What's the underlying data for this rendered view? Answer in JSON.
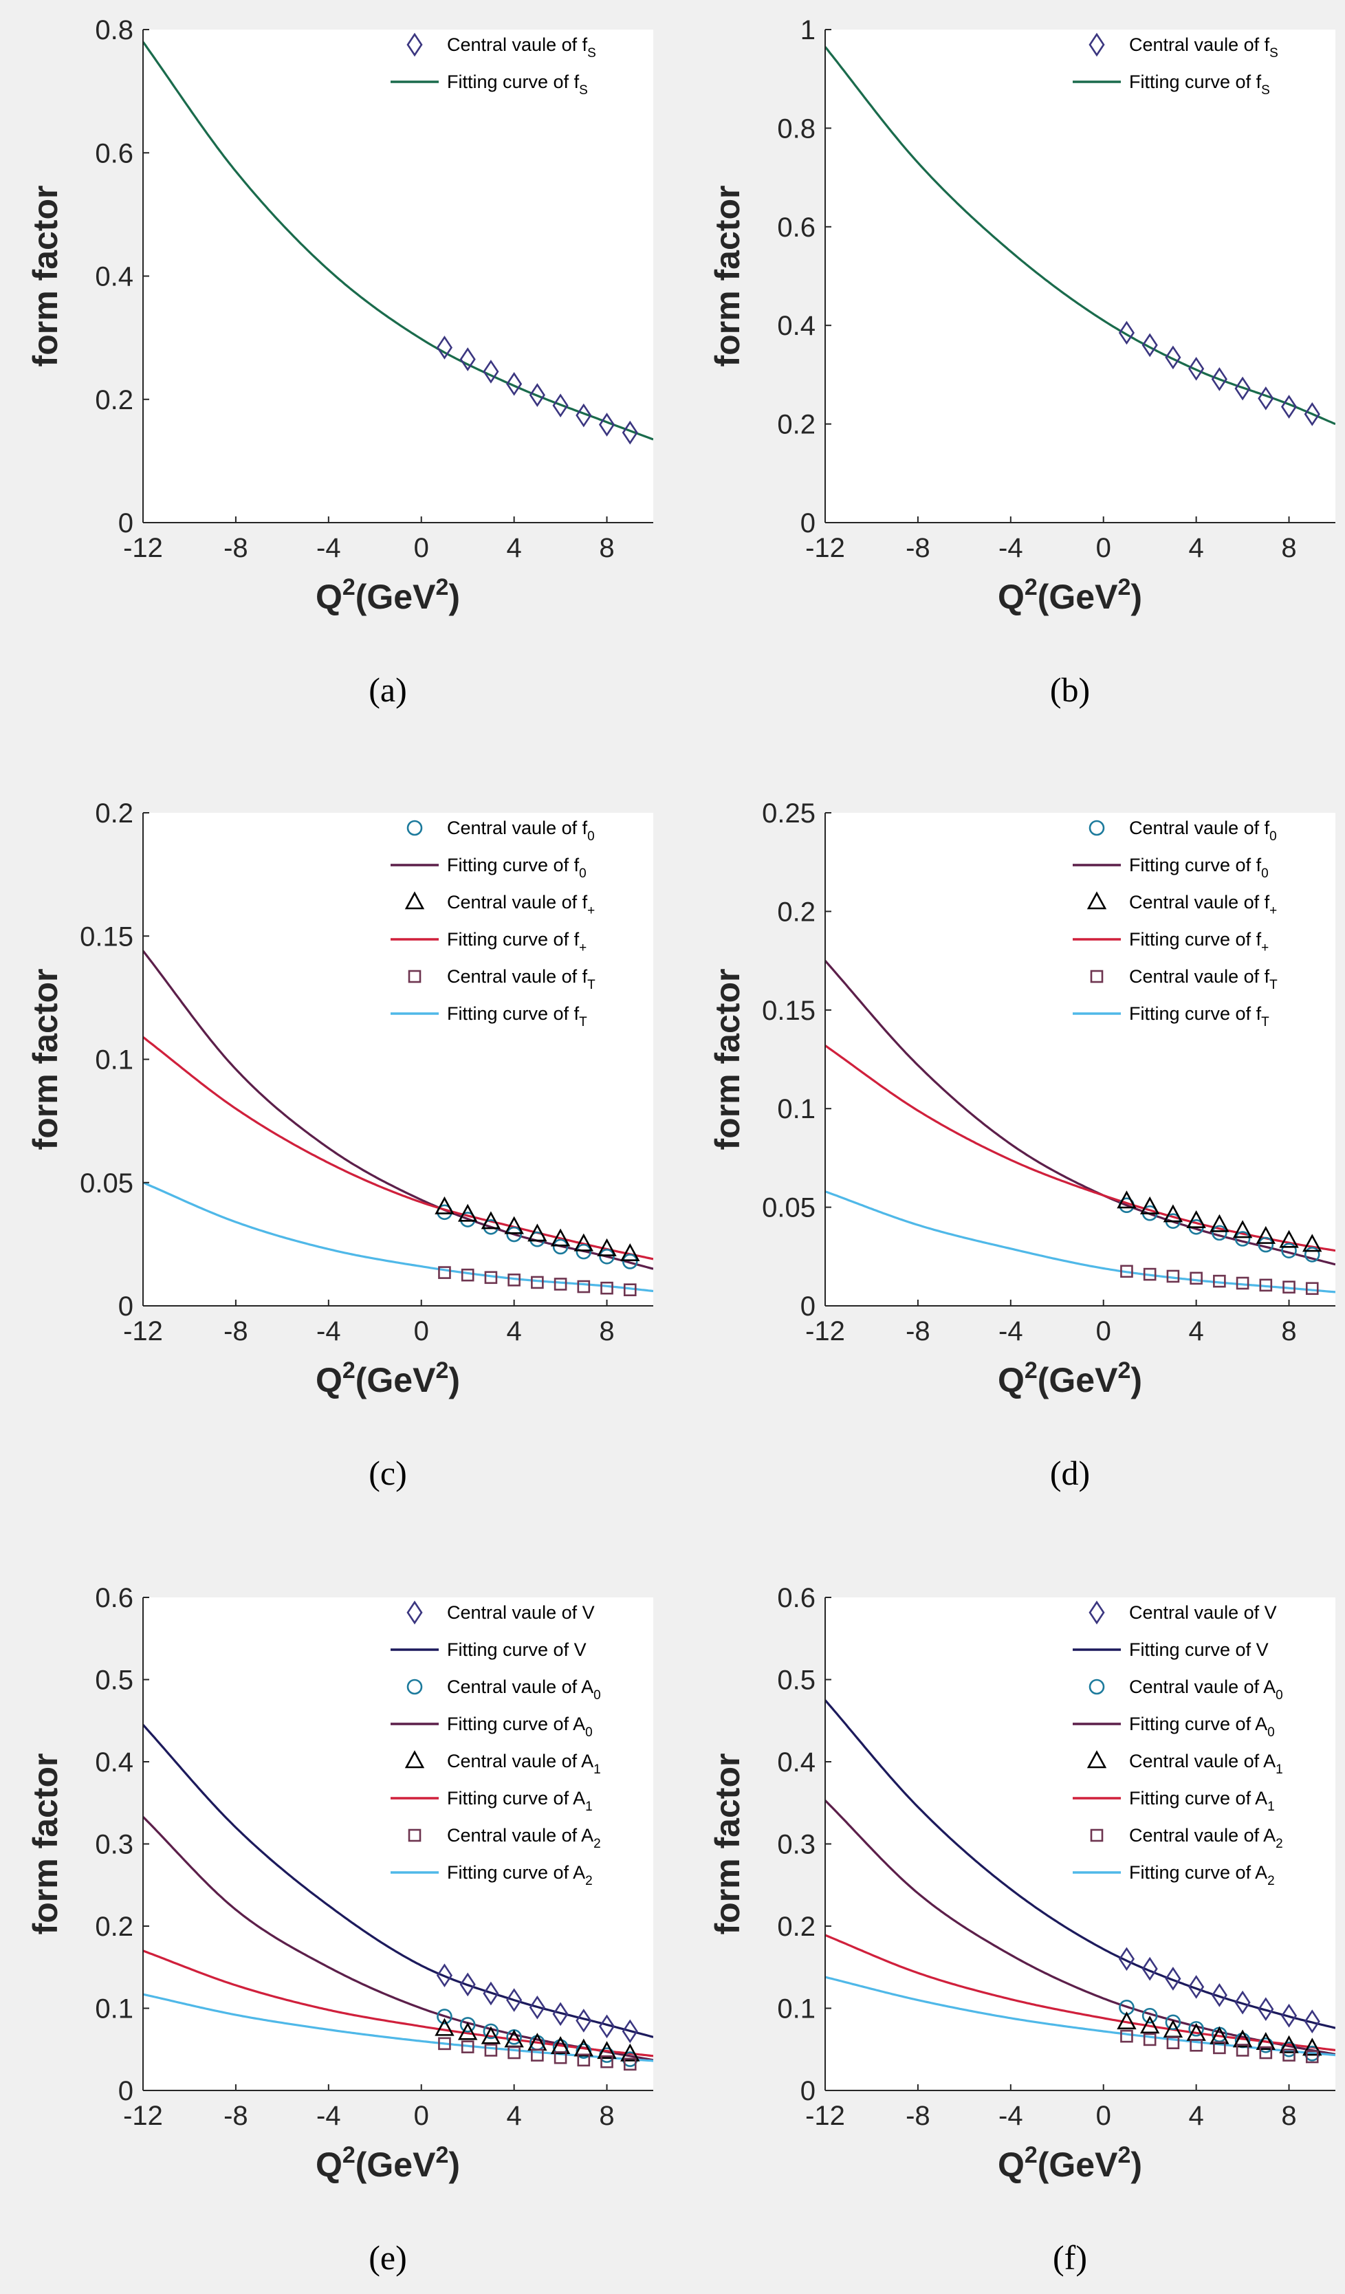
{
  "chart_data": [
    {
      "type": "line",
      "caption": "(a)",
      "xlabel": "Q",
      "xlabel_sup": "2",
      "xlabel_unit": "(GeV",
      "xlabel_unit_sup": "2",
      "xlabel_close": ")",
      "ylabel": "form factor",
      "xlim": [
        -12,
        10
      ],
      "ylim": [
        0,
        0.8
      ],
      "xticks": [
        "-12",
        "-8",
        "-4",
        "0",
        "4",
        "8"
      ],
      "yticks": [
        "0",
        "0.2",
        "0.4",
        "0.6",
        "0.8"
      ],
      "series": [
        {
          "name": "f_S",
          "legend_point": [
            "Central vaule of f",
            "S"
          ],
          "legend_curve": [
            "Fitting curve of f",
            "S"
          ],
          "marker": "diamond",
          "color": "#1a6b4c",
          "marker_color": "#3b3680",
          "x": [
            1,
            2,
            3,
            4,
            5,
            6,
            7,
            8,
            9
          ],
          "y": [
            0.284,
            0.265,
            0.245,
            0.225,
            0.207,
            0.19,
            0.174,
            0.159,
            0.146
          ],
          "curve_x": [
            -12,
            -8,
            -4,
            0,
            4,
            8,
            10
          ],
          "curve_y": [
            0.78,
            0.57,
            0.41,
            0.298,
            0.222,
            0.163,
            0.135
          ]
        }
      ]
    },
    {
      "type": "line",
      "caption": "(b)",
      "xlabel": "Q",
      "xlabel_sup": "2",
      "xlabel_unit": "(GeV",
      "xlabel_unit_sup": "2",
      "xlabel_close": ")",
      "ylabel": "form factor",
      "xlim": [
        -12,
        10
      ],
      "ylim": [
        0,
        1
      ],
      "xticks": [
        "-12",
        "-8",
        "-4",
        "0",
        "4",
        "8"
      ],
      "yticks": [
        "0",
        "0.2",
        "0.4",
        "0.6",
        "0.8",
        "1"
      ],
      "series": [
        {
          "name": "f_S",
          "legend_point": [
            "Central vaule of f",
            "S"
          ],
          "legend_curve": [
            "Fitting curve of f",
            "S"
          ],
          "marker": "diamond",
          "color": "#1a6b4c",
          "marker_color": "#3b3680",
          "x": [
            1,
            2,
            3,
            4,
            5,
            6,
            7,
            8,
            9
          ],
          "y": [
            0.385,
            0.36,
            0.335,
            0.312,
            0.291,
            0.272,
            0.252,
            0.235,
            0.22
          ],
          "curve_x": [
            -12,
            -8,
            -4,
            0,
            4,
            8,
            10
          ],
          "curve_y": [
            0.965,
            0.73,
            0.55,
            0.41,
            0.31,
            0.24,
            0.2
          ]
        }
      ]
    },
    {
      "type": "line",
      "caption": "(c)",
      "xlabel": "Q",
      "xlabel_sup": "2",
      "xlabel_unit": "(GeV",
      "xlabel_unit_sup": "2",
      "xlabel_close": ")",
      "ylabel": "form factor",
      "xlim": [
        -12,
        10
      ],
      "ylim": [
        0,
        0.2
      ],
      "xticks": [
        "-12",
        "-8",
        "-4",
        "0",
        "4",
        "8"
      ],
      "yticks": [
        "0",
        "0.05",
        "0.1",
        "0.15",
        "0.2"
      ],
      "series": [
        {
          "name": "f_0",
          "legend_point": [
            "Central vaule of f",
            "0"
          ],
          "legend_curve": [
            "Fitting curve of f",
            "0"
          ],
          "marker": "circle",
          "color": "#5c1f4a",
          "marker_color": "#1c7a9c",
          "x": [
            1,
            2,
            3,
            4,
            5,
            6,
            7,
            8,
            9
          ],
          "y": [
            0.038,
            0.035,
            0.032,
            0.029,
            0.027,
            0.024,
            0.022,
            0.02,
            0.018
          ],
          "curve_x": [
            -12,
            -8,
            -4,
            0,
            4,
            8,
            10
          ],
          "curve_y": [
            0.144,
            0.096,
            0.064,
            0.043,
            0.029,
            0.02,
            0.015
          ]
        },
        {
          "name": "f_+",
          "legend_point": [
            "Central vaule of f",
            "+"
          ],
          "legend_curve": [
            "Fitting curve of f",
            "+"
          ],
          "marker": "triangle",
          "color": "#d0203c",
          "marker_color": "#000000",
          "x": [
            1,
            2,
            3,
            4,
            5,
            6,
            7,
            8,
            9
          ],
          "y": [
            0.04,
            0.037,
            0.034,
            0.032,
            0.029,
            0.027,
            0.025,
            0.023,
            0.021
          ],
          "curve_x": [
            -12,
            -8,
            -4,
            0,
            4,
            8,
            10
          ],
          "curve_y": [
            0.109,
            0.08,
            0.058,
            0.042,
            0.032,
            0.023,
            0.019
          ]
        },
        {
          "name": "f_T",
          "legend_point": [
            "Central vaule of f",
            "T"
          ],
          "legend_curve": [
            "Fitting curve of f",
            "T"
          ],
          "marker": "square",
          "color": "#4fb8e8",
          "marker_color": "#6e3550",
          "x": [
            1,
            2,
            3,
            4,
            5,
            6,
            7,
            8,
            9
          ],
          "y": [
            0.0135,
            0.0125,
            0.0115,
            0.0105,
            0.0095,
            0.0088,
            0.0078,
            0.0072,
            0.0065
          ],
          "curve_x": [
            -12,
            -8,
            -4,
            0,
            4,
            8,
            10
          ],
          "curve_y": [
            0.05,
            0.034,
            0.023,
            0.016,
            0.011,
            0.008,
            0.006
          ]
        }
      ]
    },
    {
      "type": "line",
      "caption": "(d)",
      "xlabel": "Q",
      "xlabel_sup": "2",
      "xlabel_unit": "(GeV",
      "xlabel_unit_sup": "2",
      "xlabel_close": ")",
      "ylabel": "form factor",
      "xlim": [
        -12,
        10
      ],
      "ylim": [
        0,
        0.25
      ],
      "xticks": [
        "-12",
        "-8",
        "-4",
        "0",
        "4",
        "8"
      ],
      "yticks": [
        "0",
        "0.05",
        "0.1",
        "0.15",
        "0.2",
        "0.25"
      ],
      "series": [
        {
          "name": "f_0",
          "legend_point": [
            "Central vaule of f",
            "0"
          ],
          "legend_curve": [
            "Fitting curve of f",
            "0"
          ],
          "marker": "circle",
          "color": "#5c1f4a",
          "marker_color": "#1c7a9c",
          "x": [
            1,
            2,
            3,
            4,
            5,
            6,
            7,
            8,
            9
          ],
          "y": [
            0.051,
            0.047,
            0.043,
            0.04,
            0.037,
            0.034,
            0.031,
            0.028,
            0.026
          ],
          "curve_x": [
            -12,
            -8,
            -4,
            0,
            4,
            8,
            10
          ],
          "curve_y": [
            0.175,
            0.122,
            0.082,
            0.056,
            0.039,
            0.027,
            0.021
          ]
        },
        {
          "name": "f_+",
          "legend_point": [
            "Central vaule of f",
            "+"
          ],
          "legend_curve": [
            "Fitting curve of f",
            "+"
          ],
          "marker": "triangle",
          "color": "#d0203c",
          "marker_color": "#000000",
          "x": [
            1,
            2,
            3,
            4,
            5,
            6,
            7,
            8,
            9
          ],
          "y": [
            0.053,
            0.05,
            0.046,
            0.043,
            0.041,
            0.038,
            0.035,
            0.033,
            0.031
          ],
          "curve_x": [
            -12,
            -8,
            -4,
            0,
            4,
            8,
            10
          ],
          "curve_y": [
            0.132,
            0.099,
            0.074,
            0.056,
            0.042,
            0.032,
            0.028
          ]
        },
        {
          "name": "f_T",
          "legend_point": [
            "Central vaule of f",
            "T"
          ],
          "legend_curve": [
            "Fitting curve of f",
            "T"
          ],
          "marker": "square",
          "color": "#4fb8e8",
          "marker_color": "#6e3550",
          "x": [
            1,
            2,
            3,
            4,
            5,
            6,
            7,
            8,
            9
          ],
          "y": [
            0.0175,
            0.016,
            0.015,
            0.014,
            0.0125,
            0.0115,
            0.0105,
            0.0095,
            0.0088
          ],
          "curve_x": [
            -12,
            -8,
            -4,
            0,
            4,
            8,
            10
          ],
          "curve_y": [
            0.058,
            0.041,
            0.029,
            0.019,
            0.013,
            0.009,
            0.007
          ]
        }
      ]
    },
    {
      "type": "line",
      "caption": "(e)",
      "xlabel": "Q",
      "xlabel_sup": "2",
      "xlabel_unit": "(GeV",
      "xlabel_unit_sup": "2",
      "xlabel_close": ")",
      "ylabel": "form factor",
      "xlim": [
        -12,
        10
      ],
      "ylim": [
        0,
        0.6
      ],
      "xticks": [
        "-12",
        "-8",
        "-4",
        "0",
        "4",
        "8"
      ],
      "yticks": [
        "0",
        "0.1",
        "0.2",
        "0.3",
        "0.4",
        "0.5",
        "0.6"
      ],
      "series": [
        {
          "name": "V",
          "legend_point": [
            "Central vaule of V",
            ""
          ],
          "legend_curve": [
            "Fitting curve of V",
            ""
          ],
          "marker": "diamond",
          "color": "#1c1a5c",
          "marker_color": "#3b3680",
          "x": [
            1,
            2,
            3,
            4,
            5,
            6,
            7,
            8,
            9
          ],
          "y": [
            0.14,
            0.129,
            0.118,
            0.11,
            0.101,
            0.093,
            0.085,
            0.078,
            0.072
          ],
          "curve_x": [
            -12,
            -8,
            -4,
            0,
            4,
            8,
            10
          ],
          "curve_y": [
            0.445,
            0.32,
            0.225,
            0.152,
            0.11,
            0.08,
            0.065
          ]
        },
        {
          "name": "A_0",
          "legend_point": [
            "Central vaule of A",
            "0"
          ],
          "legend_curve": [
            "Fitting curve of A",
            "0"
          ],
          "marker": "circle",
          "color": "#5c1f4a",
          "marker_color": "#1c7a9c",
          "x": [
            1,
            2,
            3,
            4,
            5,
            6,
            7,
            8,
            9
          ],
          "y": [
            0.09,
            0.08,
            0.072,
            0.065,
            0.058,
            0.053,
            0.048,
            0.043,
            0.038
          ],
          "curve_x": [
            -12,
            -8,
            -4,
            0,
            4,
            8,
            10
          ],
          "curve_y": [
            0.333,
            0.22,
            0.15,
            0.1,
            0.068,
            0.047,
            0.037
          ]
        },
        {
          "name": "A_1",
          "legend_point": [
            "Central vaule of A",
            "1"
          ],
          "legend_curve": [
            "Fitting curve of A",
            "1"
          ],
          "marker": "triangle",
          "color": "#d0203c",
          "marker_color": "#000000",
          "x": [
            1,
            2,
            3,
            4,
            5,
            6,
            7,
            8,
            9
          ],
          "y": [
            0.075,
            0.07,
            0.065,
            0.061,
            0.057,
            0.053,
            0.05,
            0.047,
            0.044
          ],
          "curve_x": [
            -12,
            -8,
            -4,
            0,
            4,
            8,
            10
          ],
          "curve_y": [
            0.17,
            0.128,
            0.098,
            0.078,
            0.062,
            0.048,
            0.042
          ]
        },
        {
          "name": "A_2",
          "legend_point": [
            "Central vaule of A",
            "2"
          ],
          "legend_curve": [
            "Fitting curve of A",
            "2"
          ],
          "marker": "square",
          "color": "#4fb8e8",
          "marker_color": "#6e3550",
          "x": [
            1,
            2,
            3,
            4,
            5,
            6,
            7,
            8,
            9
          ],
          "y": [
            0.057,
            0.053,
            0.049,
            0.046,
            0.043,
            0.04,
            0.037,
            0.035,
            0.032
          ],
          "curve_x": [
            -12,
            -8,
            -4,
            0,
            4,
            8,
            10
          ],
          "curve_y": [
            0.117,
            0.092,
            0.074,
            0.06,
            0.049,
            0.04,
            0.036
          ]
        }
      ]
    },
    {
      "type": "line",
      "caption": "(f)",
      "xlabel": "Q",
      "xlabel_sup": "2",
      "xlabel_unit": "(GeV",
      "xlabel_unit_sup": "2",
      "xlabel_close": ")",
      "ylabel": "form factor",
      "xlim": [
        -12,
        10
      ],
      "ylim": [
        0,
        0.6
      ],
      "xticks": [
        "-12",
        "-8",
        "-4",
        "0",
        "4",
        "8"
      ],
      "yticks": [
        "0",
        "0.1",
        "0.2",
        "0.3",
        "0.4",
        "0.5",
        "0.6"
      ],
      "series": [
        {
          "name": "V",
          "legend_point": [
            "Central vaule of V",
            ""
          ],
          "legend_curve": [
            "Fitting curve of V",
            ""
          ],
          "marker": "diamond",
          "color": "#1c1a5c",
          "marker_color": "#3b3680",
          "x": [
            1,
            2,
            3,
            4,
            5,
            6,
            7,
            8,
            9
          ],
          "y": [
            0.16,
            0.148,
            0.136,
            0.126,
            0.116,
            0.107,
            0.099,
            0.091,
            0.084
          ],
          "curve_x": [
            -12,
            -8,
            -4,
            0,
            4,
            8,
            10
          ],
          "curve_y": [
            0.475,
            0.345,
            0.245,
            0.172,
            0.124,
            0.09,
            0.076
          ]
        },
        {
          "name": "A_0",
          "legend_point": [
            "Central vaule of A",
            "0"
          ],
          "legend_curve": [
            "Fitting curve of A",
            "0"
          ],
          "marker": "circle",
          "color": "#5c1f4a",
          "marker_color": "#1c7a9c",
          "x": [
            1,
            2,
            3,
            4,
            5,
            6,
            7,
            8,
            9
          ],
          "y": [
            0.101,
            0.091,
            0.083,
            0.075,
            0.068,
            0.061,
            0.055,
            0.05,
            0.045
          ],
          "curve_x": [
            -12,
            -8,
            -4,
            0,
            4,
            8,
            10
          ],
          "curve_y": [
            0.353,
            0.24,
            0.165,
            0.112,
            0.078,
            0.054,
            0.044
          ]
        },
        {
          "name": "A_1",
          "legend_point": [
            "Central vaule of A",
            "1"
          ],
          "legend_curve": [
            "Fitting curve of A",
            "1"
          ],
          "marker": "triangle",
          "color": "#d0203c",
          "marker_color": "#000000",
          "x": [
            1,
            2,
            3,
            4,
            5,
            6,
            7,
            8,
            9
          ],
          "y": [
            0.083,
            0.078,
            0.073,
            0.069,
            0.065,
            0.061,
            0.058,
            0.054,
            0.051
          ],
          "curve_x": [
            -12,
            -8,
            -4,
            0,
            4,
            8,
            10
          ],
          "curve_y": [
            0.189,
            0.143,
            0.111,
            0.088,
            0.07,
            0.056,
            0.049
          ]
        },
        {
          "name": "A_2",
          "legend_point": [
            "Central vaule of A",
            "2"
          ],
          "legend_curve": [
            "Fitting curve of A",
            "2"
          ],
          "marker": "square",
          "color": "#4fb8e8",
          "marker_color": "#6e3550",
          "x": [
            1,
            2,
            3,
            4,
            5,
            6,
            7,
            8,
            9
          ],
          "y": [
            0.066,
            0.062,
            0.058,
            0.055,
            0.052,
            0.049,
            0.046,
            0.043,
            0.041
          ],
          "curve_x": [
            -12,
            -8,
            -4,
            0,
            4,
            8,
            10
          ],
          "curve_y": [
            0.138,
            0.11,
            0.088,
            0.072,
            0.059,
            0.048,
            0.043
          ]
        }
      ]
    }
  ]
}
